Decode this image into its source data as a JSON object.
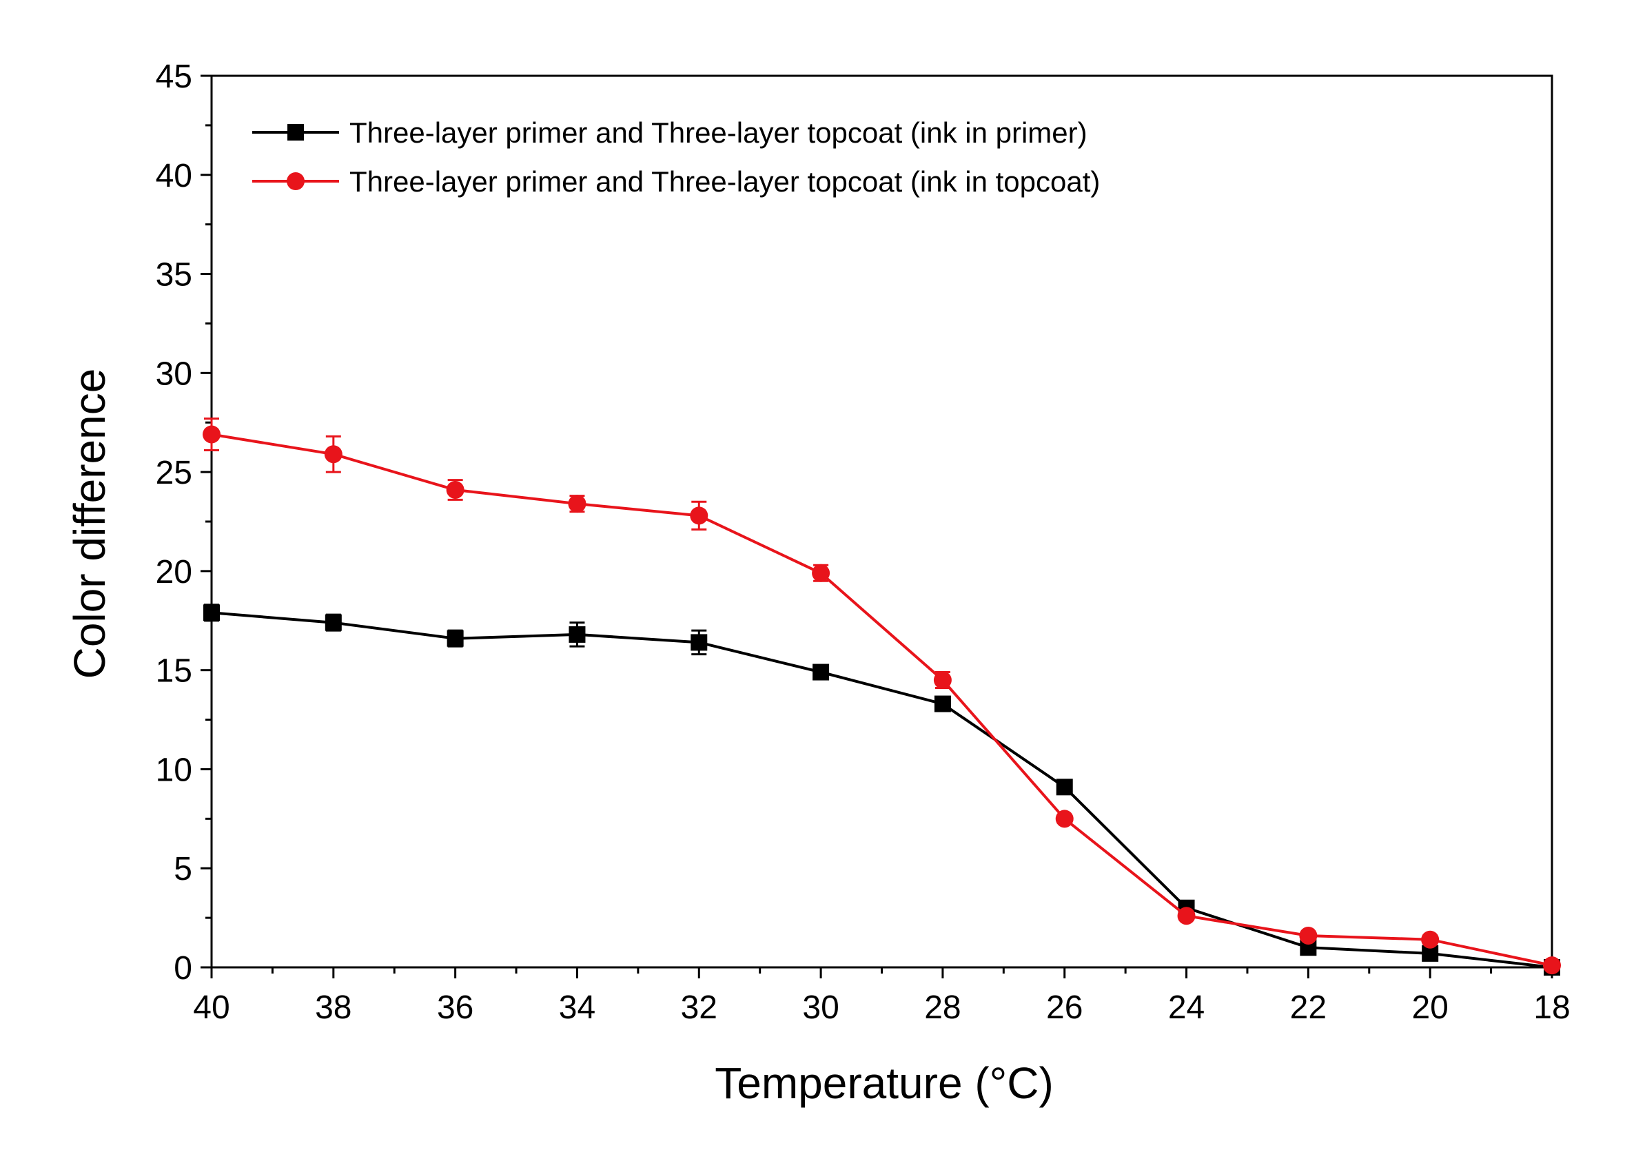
{
  "chart_data": {
    "type": "line",
    "title": "",
    "xlabel": "Temperature (°C)",
    "ylabel": "Color difference",
    "xlim": [
      40,
      18
    ],
    "ylim": [
      0,
      45
    ],
    "x_reversed": true,
    "x_ticks": [
      40,
      38,
      36,
      34,
      32,
      30,
      28,
      26,
      24,
      22,
      20,
      18
    ],
    "y_ticks": [
      0,
      5,
      10,
      15,
      20,
      25,
      30,
      35,
      40,
      45
    ],
    "x": [
      40,
      38,
      36,
      34,
      32,
      30,
      28,
      26,
      24,
      22,
      20,
      18
    ],
    "legend_position": "top-left",
    "grid": false,
    "series": [
      {
        "name": "Three-layer primer and Three-layer topcoat (ink in primer)",
        "color": "#000000",
        "marker": "square",
        "values": [
          17.9,
          17.4,
          16.6,
          16.8,
          16.4,
          14.9,
          13.3,
          9.1,
          3.0,
          1.0,
          0.7,
          0.0
        ],
        "errors": [
          0.4,
          0.4,
          0.4,
          0.6,
          0.6,
          0.3,
          0.3,
          0.2,
          0.2,
          0.2,
          0.1,
          0.1
        ]
      },
      {
        "name": "Three-layer primer and Three-layer topcoat (ink in topcoat)",
        "color": "#e8141b",
        "marker": "circle",
        "values": [
          26.9,
          25.9,
          24.1,
          23.4,
          22.8,
          19.9,
          14.5,
          7.5,
          2.6,
          1.6,
          1.4,
          0.1
        ],
        "errors": [
          0.8,
          0.9,
          0.5,
          0.4,
          0.7,
          0.4,
          0.4,
          0.2,
          0.2,
          0.2,
          0.2,
          0.1
        ]
      }
    ]
  }
}
